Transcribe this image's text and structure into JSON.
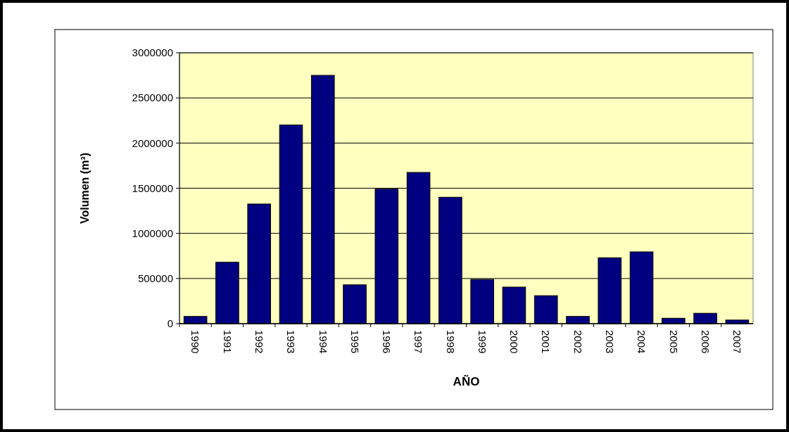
{
  "chart_data": {
    "type": "bar",
    "xlabel": "AÑO",
    "ylabel": "Volumen (m³)",
    "categories": [
      "1990",
      "1991",
      "1992",
      "1993",
      "1994",
      "1995",
      "1996",
      "1997",
      "1998",
      "1999",
      "2000",
      "2001",
      "2002",
      "2003",
      "2004",
      "2005",
      "2006",
      "2007"
    ],
    "values": [
      80000,
      680000,
      1325000,
      2200000,
      2750000,
      430000,
      1490000,
      1675000,
      1400000,
      490000,
      405000,
      310000,
      80000,
      730000,
      795000,
      60000,
      115000,
      40000
    ],
    "color": "#000080",
    "ylim": [
      0,
      3000000
    ],
    "yticks": [
      0,
      500000,
      1000000,
      1500000,
      2000000,
      2500000,
      3000000
    ],
    "grid": "y"
  }
}
